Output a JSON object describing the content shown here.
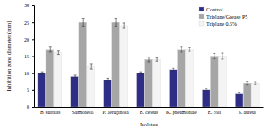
{
  "chart_data": {
    "type": "bar",
    "x_label": "Isolates",
    "y_label": "Inhibition zone diameter (mm)",
    "categories": [
      "B. subtilis",
      "Salmonella",
      "P. aeruginosa",
      "B. cereus",
      "K. pneumoniae",
      "E. coli",
      "S. aureus"
    ],
    "series": [
      {
        "name": "Control",
        "color": "#2e2e86",
        "values": [
          10,
          9,
          8,
          10,
          11,
          5,
          4
        ],
        "errors": [
          0.4,
          0.4,
          0.5,
          0.4,
          0.4,
          0.3,
          0.3
        ]
      },
      {
        "name": "Triplane/Grease P5",
        "color": "#a6a6a6",
        "values": [
          17,
          25,
          25,
          14,
          17,
          15,
          7
        ],
        "errors": [
          0.8,
          1.2,
          1.2,
          0.7,
          0.8,
          0.8,
          0.4
        ]
      },
      {
        "name": "Triplane 0.5%",
        "color": "#f4f4f4",
        "values": [
          16,
          12,
          24,
          14,
          17,
          15,
          7
        ],
        "errors": [
          0.5,
          0.8,
          0.8,
          0.5,
          0.6,
          0.9,
          0.3
        ]
      }
    ],
    "ylim": [
      0,
      30
    ],
    "yticks": [
      0,
      5,
      10,
      15,
      20,
      25,
      30
    ],
    "legend": "top-right",
    "grid": false
  }
}
